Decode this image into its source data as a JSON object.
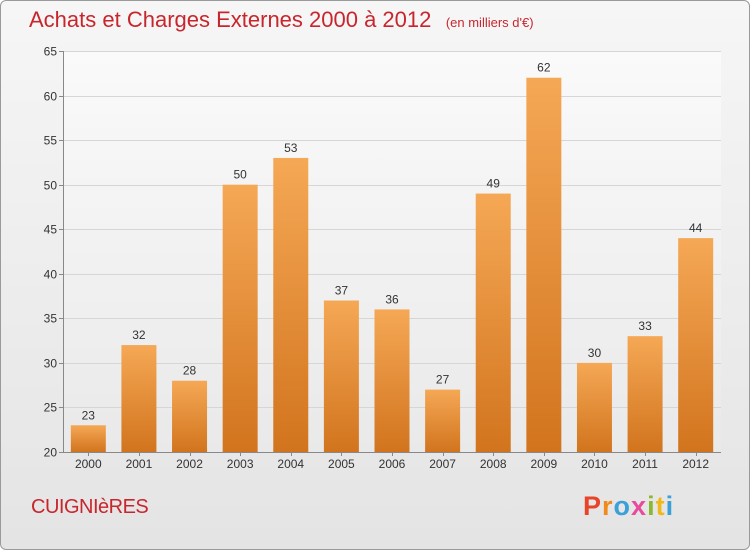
{
  "header": {
    "title": "Achats et Charges Externes 2000 à 2012",
    "subtitle": "(en milliers d'€)"
  },
  "footer": {
    "commune": "CUIGNIèRES",
    "logo": [
      "P",
      "r",
      "o",
      "x",
      "i",
      "t",
      "i"
    ]
  },
  "colors": {
    "title": "#c8262d",
    "bar_top": "#f5a855",
    "bar_bottom": "#d2741e",
    "logo": [
      "#e8442a",
      "#f08a1a",
      "#3aa0d8",
      "#e84a9c",
      "#8ab82e",
      "#f0b81a",
      "#3aa0d8"
    ]
  },
  "chart_data": {
    "type": "bar",
    "categories": [
      "2000",
      "2001",
      "2002",
      "2003",
      "2004",
      "2005",
      "2006",
      "2007",
      "2008",
      "2009",
      "2010",
      "2011",
      "2012"
    ],
    "values": [
      23,
      32,
      28,
      50,
      53,
      37,
      36,
      27,
      49,
      62,
      30,
      33,
      44
    ],
    "data_labels": [
      "23",
      "32",
      "28",
      "50",
      "53",
      "37",
      "36",
      "27",
      "49",
      "62",
      "30",
      "33",
      "44"
    ],
    "yticks": [
      "20",
      "25",
      "30",
      "35",
      "40",
      "45",
      "50",
      "55",
      "60",
      "65"
    ],
    "ylim": [
      20,
      65
    ],
    "grid": true,
    "legend": "none"
  }
}
